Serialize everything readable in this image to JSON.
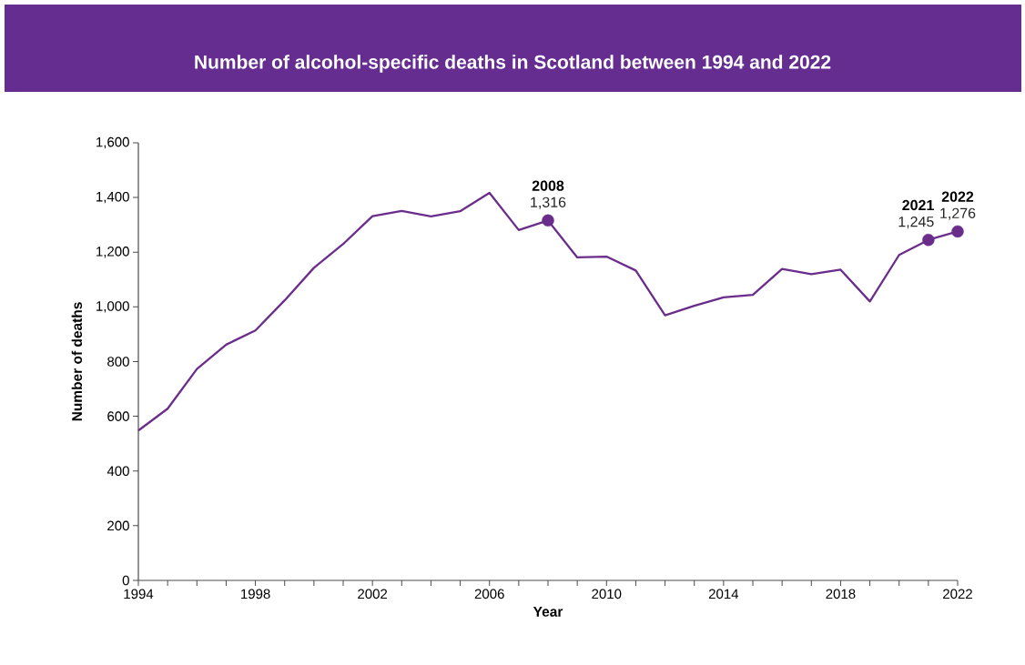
{
  "chart_data": {
    "type": "line",
    "title": "Number of alcohol-specific deaths in Scotland between 1994 and 2022",
    "xlabel": "Year",
    "ylabel": "Number of deaths",
    "x": [
      1994,
      1995,
      1996,
      1997,
      1998,
      1999,
      2000,
      2001,
      2002,
      2003,
      2004,
      2005,
      2006,
      2007,
      2008,
      2009,
      2010,
      2011,
      2012,
      2013,
      2014,
      2015,
      2016,
      2017,
      2018,
      2019,
      2020,
      2021,
      2022
    ],
    "series": [
      {
        "color": "#6b2d8b",
        "values": [
          548,
          628,
          773,
          862,
          914,
          1024,
          1143,
          1230,
          1332,
          1351,
          1331,
          1350,
          1417,
          1281,
          1316,
          1181,
          1184,
          1133,
          969,
          1004,
          1035,
          1044,
          1139,
          1120,
          1136,
          1020,
          1190,
          1245,
          1276
        ]
      },
      {
        "type": "scatter",
        "color": "#6b2d8b",
        "marker": "circle",
        "x": [
          2008,
          2021,
          2022
        ],
        "values": [
          1316,
          1245,
          1276
        ],
        "value_labels": [
          "1,316",
          "1,245",
          "1,276"
        ]
      }
    ],
    "annotations": [
      {
        "text": "2008",
        "x": 2008,
        "y": 1316
      },
      {
        "text": "2021",
        "x": 2021,
        "y": 1245
      },
      {
        "text": "2022",
        "x": 2022,
        "y": 1276
      }
    ],
    "xlim": [
      1994,
      2022
    ],
    "ylim": [
      0,
      1600
    ],
    "xticks": [
      1994,
      {
        "value": 1995,
        "label": null
      },
      {
        "value": 1996,
        "label": null
      },
      {
        "value": 1997,
        "label": null
      },
      1998,
      {
        "value": 1999,
        "label": null
      },
      {
        "value": 2000,
        "label": null
      },
      {
        "value": 2001,
        "label": null
      },
      2002,
      {
        "value": 2003,
        "label": null
      },
      {
        "value": 2004,
        "label": null
      },
      {
        "value": 2005,
        "label": null
      },
      2006,
      {
        "value": 2007,
        "label": null
      },
      {
        "value": 2008,
        "label": null
      },
      {
        "value": 2009,
        "label": null
      },
      2010,
      {
        "value": 2011,
        "label": null
      },
      {
        "value": 2012,
        "label": null
      },
      {
        "value": 2013,
        "label": null
      },
      2014,
      {
        "value": 2015,
        "label": null
      },
      {
        "value": 2016,
        "label": null
      },
      {
        "value": 2017,
        "label": null
      },
      2018,
      {
        "value": 2019,
        "label": null
      },
      {
        "value": 2020,
        "label": null
      },
      {
        "value": 2021,
        "label": null
      },
      2022
    ],
    "yticks": [
      0,
      {
        "value": 200,
        "label": "200"
      },
      {
        "value": 400,
        "label": "400"
      },
      {
        "value": 600,
        "label": "600"
      },
      {
        "value": 800,
        "label": "800"
      },
      {
        "value": 1000,
        "label": "1,000"
      },
      {
        "value": 1200,
        "label": "1,200"
      },
      {
        "value": 1400,
        "label": "1,400"
      },
      {
        "value": 1600,
        "label": "1,600"
      }
    ],
    "marker": "none"
  }
}
